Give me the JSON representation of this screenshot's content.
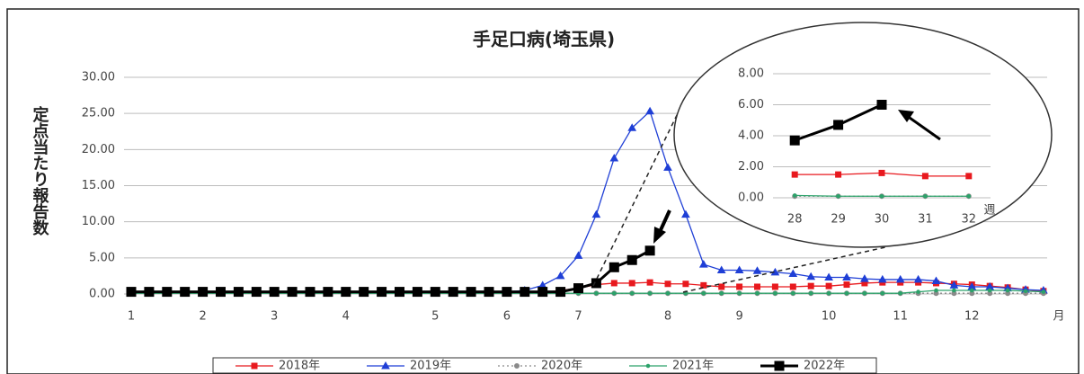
{
  "chart_data": [
    {
      "type": "line",
      "title": "手足口病(埼玉県)",
      "y_label": "定点当たり報告数",
      "x_label": "月",
      "categories": [
        "1",
        null,
        null,
        null,
        "2",
        null,
        null,
        null,
        "3",
        null,
        null,
        null,
        "4",
        null,
        null,
        null,
        null,
        "5",
        null,
        null,
        null,
        "6",
        null,
        null,
        null,
        "7",
        null,
        null,
        null,
        null,
        "8",
        null,
        null,
        null,
        "9",
        null,
        null,
        null,
        null,
        "10",
        null,
        null,
        null,
        "11",
        null,
        null,
        null,
        "12",
        null,
        null,
        null,
        null
      ],
      "ylim": [
        0,
        30
      ],
      "yticks": [
        {
          "value": 0,
          "label": "0.00"
        },
        {
          "value": 5,
          "label": "5.00"
        },
        {
          "value": 10,
          "label": "10.00"
        },
        {
          "value": 15,
          "label": "15.00"
        },
        {
          "value": 20,
          "label": "20.00"
        },
        {
          "value": 25,
          "label": "25.00"
        },
        {
          "value": 30,
          "label": "30.00"
        }
      ],
      "grid": true,
      "series": [
        {
          "name": "2018年",
          "color": "#e8191e",
          "marker": "square",
          "dash": false,
          "values": [
            0.2,
            0.2,
            0.2,
            0.2,
            0.2,
            0.2,
            0.2,
            0.2,
            0.2,
            0.2,
            0.2,
            0.2,
            0.2,
            0.2,
            0.2,
            0.2,
            0.2,
            0.2,
            0.2,
            0.2,
            0.2,
            0.2,
            0.2,
            0.2,
            0.5,
            0.8,
            1.3,
            1.5,
            1.5,
            1.6,
            1.4,
            1.4,
            1.2,
            1.0,
            1.0,
            1.0,
            1.0,
            1.0,
            1.1,
            1.1,
            1.3,
            1.5,
            1.6,
            1.6,
            1.6,
            1.5,
            1.4,
            1.3,
            1.1,
            0.9,
            0.6,
            0.4
          ]
        },
        {
          "name": "2019年",
          "color": "#1f3fd6",
          "marker": "triangle",
          "dash": false,
          "values": [
            0.3,
            0.3,
            0.3,
            0.3,
            0.3,
            0.3,
            0.3,
            0.3,
            0.3,
            0.3,
            0.3,
            0.3,
            0.3,
            0.3,
            0.3,
            0.3,
            0.3,
            0.3,
            0.3,
            0.3,
            0.3,
            0.3,
            0.5,
            1.2,
            2.5,
            5.3,
            11.0,
            18.8,
            23.0,
            25.3,
            17.5,
            11.0,
            4.1,
            3.3,
            3.3,
            3.2,
            3.0,
            2.8,
            2.4,
            2.3,
            2.3,
            2.1,
            2.0,
            2.0,
            2.0,
            1.8,
            1.2,
            1.0,
            1.0,
            0.8,
            0.6,
            0.5
          ]
        },
        {
          "name": "2020年",
          "color": "#8a8a8a",
          "marker": "circle",
          "dash": true,
          "values": [
            0.1,
            0.1,
            0.1,
            0.1,
            0.1,
            0.1,
            0.1,
            0.1,
            0.1,
            0.1,
            0.1,
            0.1,
            0.1,
            0.1,
            0.1,
            0.1,
            0.1,
            0.1,
            0.1,
            0.1,
            0.1,
            0.1,
            0.1,
            0.1,
            0.1,
            0.1,
            0.1,
            0.1,
            0.1,
            0.1,
            0.1,
            0.1,
            0.1,
            0.1,
            0.1,
            0.1,
            0.1,
            0.1,
            0.1,
            0.1,
            0.1,
            0.1,
            0.1,
            0.1,
            0.1,
            0.1,
            0.1,
            0.1,
            0.1,
            0.1,
            0.1,
            0.1
          ]
        },
        {
          "name": "2021年",
          "color": "#2ca26a",
          "marker": "dot",
          "dash": false,
          "values": [
            0.1,
            0.1,
            0.1,
            0.1,
            0.1,
            0.1,
            0.1,
            0.1,
            0.1,
            0.1,
            0.1,
            0.1,
            0.1,
            0.1,
            0.1,
            0.1,
            0.1,
            0.1,
            0.1,
            0.1,
            0.1,
            0.1,
            0.1,
            0.1,
            0.1,
            0.1,
            0.1,
            0.1,
            0.1,
            0.1,
            0.1,
            0.1,
            0.1,
            0.1,
            0.1,
            0.1,
            0.1,
            0.1,
            0.1,
            0.1,
            0.1,
            0.1,
            0.1,
            0.1,
            0.3,
            0.5,
            0.5,
            0.5,
            0.5,
            0.5,
            0.4,
            0.3
          ]
        },
        {
          "name": "2022年",
          "color": "#000000",
          "marker": "bigsquare",
          "dash": false,
          "values": [
            0.3,
            0.3,
            0.3,
            0.3,
            0.3,
            0.3,
            0.3,
            0.3,
            0.3,
            0.3,
            0.3,
            0.3,
            0.3,
            0.3,
            0.3,
            0.3,
            0.3,
            0.3,
            0.3,
            0.3,
            0.3,
            0.3,
            0.3,
            0.3,
            0.3,
            0.8,
            1.5,
            3.7,
            4.7,
            6.0,
            null,
            null,
            null,
            null,
            null,
            null,
            null,
            null,
            null,
            null,
            null,
            null,
            null,
            null,
            null,
            null,
            null,
            null,
            null,
            null,
            null,
            null
          ]
        }
      ]
    },
    {
      "type": "line",
      "x_label": "週",
      "categories": [
        "28",
        "29",
        "30",
        "31",
        "32"
      ],
      "ylim": [
        0,
        8
      ],
      "yticks": [
        {
          "value": 0,
          "label": "0.00"
        },
        {
          "value": 2,
          "label": "2.00"
        },
        {
          "value": 4,
          "label": "4.00"
        },
        {
          "value": 6,
          "label": "6.00"
        },
        {
          "value": 8,
          "label": "8.00"
        }
      ],
      "grid": true,
      "series": [
        {
          "color": "#e8191e",
          "marker": "square",
          "dash": false,
          "values": [
            1.5,
            1.5,
            1.6,
            1.4,
            1.4
          ]
        },
        {
          "color": "#8a8a8a",
          "marker": "circle",
          "dash": true,
          "values": [
            0.1,
            0.1,
            0.1,
            0.1,
            0.1
          ]
        },
        {
          "color": "#2ca26a",
          "marker": "dot",
          "dash": false,
          "values": [
            0.15,
            0.1,
            0.1,
            0.1,
            0.1
          ]
        },
        {
          "color": "#000000",
          "marker": "bigsquare",
          "dash": false,
          "values": [
            3.7,
            4.7,
            6.0,
            null,
            null
          ]
        }
      ]
    }
  ]
}
